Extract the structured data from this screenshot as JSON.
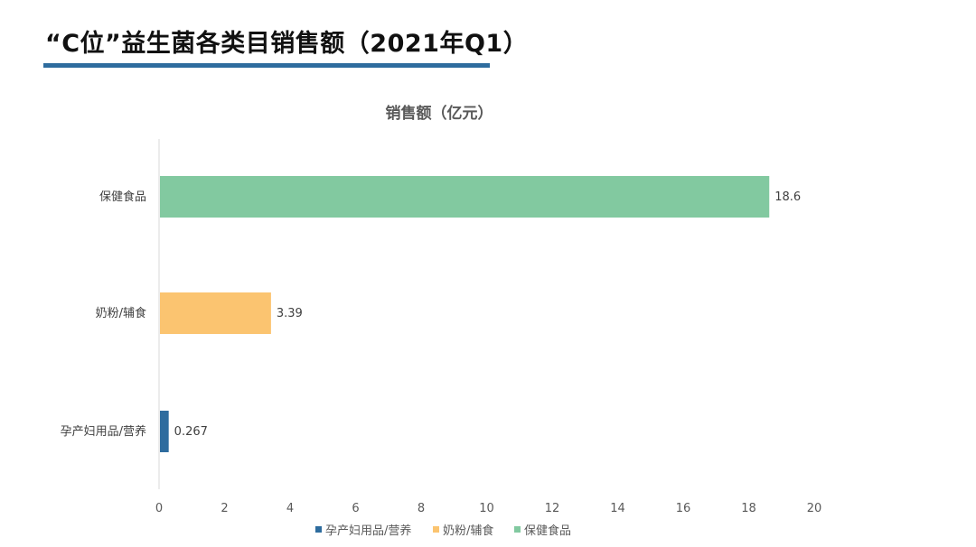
{
  "page": {
    "title": "“C位”益生菌各类目销售额（2021年Q1）",
    "accent_color": "#2E6C9E"
  },
  "chart_data": {
    "type": "bar",
    "orientation": "horizontal",
    "title": "销售额（亿元）",
    "categories": [
      "孕产妇用品/营养",
      "奶粉/辅食",
      "保健食品"
    ],
    "values": [
      0.267,
      3.39,
      18.6
    ],
    "data_labels": [
      "0.267",
      "3.39",
      "18.6"
    ],
    "colors": [
      "#2E6C9E",
      "#FBC470",
      "#82C9A0"
    ],
    "xlim": [
      0,
      20
    ],
    "xticks": [
      0,
      2,
      4,
      6,
      8,
      10,
      12,
      14,
      16,
      18,
      20
    ],
    "grid": false,
    "legend": {
      "position": "bottom",
      "entries": [
        "孕产妇用品/营养",
        "奶粉/辅食",
        "保健食品"
      ]
    },
    "xlabel": "",
    "ylabel": ""
  }
}
